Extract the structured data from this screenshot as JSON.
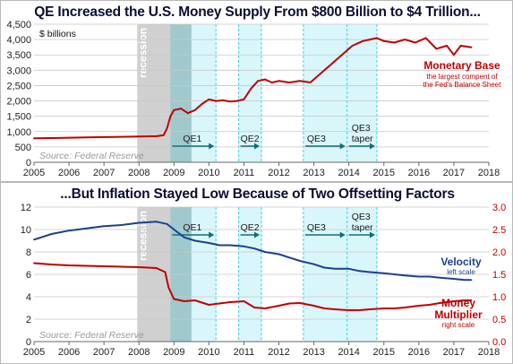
{
  "charts": [
    {
      "title": "QE Increased the U.S. Money Supply From $800 Billion to $4 Trillion...",
      "unit_label": "$ billions",
      "source": "Source: Federal Reserve"
    },
    {
      "title": "...But Inflation Stayed Low Because of Two Offsetting Factors",
      "source": "Source: Federal Reserve"
    }
  ],
  "chart_data": [
    {
      "type": "line",
      "title": "QE Increased the U.S. Money Supply From $800 Billion to $4 Trillion...",
      "ylabel": "$ billions",
      "x_ticks": [
        "2005",
        "2006",
        "2007",
        "2008",
        "2009",
        "2010",
        "2011",
        "2012",
        "2013",
        "2014",
        "2015",
        "2016",
        "2017",
        "2018"
      ],
      "xlim": [
        2005,
        2018
      ],
      "ylim": [
        0,
        4500
      ],
      "y_ticks": [
        "0",
        "500",
        "1,000",
        "1,500",
        "2,000",
        "2,500",
        "3,000",
        "3,500",
        "4,000",
        "4,500"
      ],
      "grid": true,
      "series": [
        {
          "name": "Monetary Base",
          "note": "the largest compent of the Fed's Balance Sheet",
          "color": "#c00000",
          "x": [
            2005.0,
            2005.5,
            2006.0,
            2006.5,
            2007.0,
            2007.5,
            2008.0,
            2008.5,
            2008.7,
            2008.8,
            2008.9,
            2009.0,
            2009.2,
            2009.4,
            2009.6,
            2009.8,
            2010.0,
            2010.2,
            2010.4,
            2010.6,
            2010.8,
            2011.0,
            2011.2,
            2011.4,
            2011.6,
            2011.8,
            2012.0,
            2012.3,
            2012.6,
            2012.9,
            2013.2,
            2013.5,
            2013.8,
            2014.1,
            2014.4,
            2014.6,
            2014.8,
            2015.0,
            2015.3,
            2015.6,
            2015.9,
            2016.2,
            2016.5,
            2016.8,
            2017.0,
            2017.2,
            2017.5
          ],
          "y": [
            780,
            790,
            800,
            810,
            820,
            830,
            840,
            850,
            880,
            1100,
            1500,
            1700,
            1750,
            1600,
            1700,
            1900,
            2050,
            2000,
            2020,
            1980,
            2000,
            2050,
            2400,
            2650,
            2700,
            2600,
            2650,
            2600,
            2650,
            2600,
            2900,
            3200,
            3500,
            3800,
            3950,
            4000,
            4050,
            3950,
            3900,
            4000,
            3900,
            4050,
            3700,
            3800,
            3500,
            3800,
            3750
          ]
        }
      ],
      "shaded_periods": [
        {
          "label": "recession",
          "start": 2007.95,
          "end": 2009.5
        },
        {
          "label": "QE1",
          "start": 2008.9,
          "end": 2010.2
        },
        {
          "label": "QE2",
          "start": 2010.85,
          "end": 2011.5
        },
        {
          "label": "QE3",
          "start": 2012.7,
          "end": 2014.8
        },
        {
          "label": "QE3 taper",
          "start": 2013.95,
          "end": 2014.8
        }
      ]
    },
    {
      "type": "line",
      "title": "...But Inflation Stayed Low Because of Two Offsetting Factors",
      "x_ticks": [
        "2005",
        "2006",
        "2007",
        "2008",
        "2009",
        "2010",
        "2011",
        "2012",
        "2013",
        "2014",
        "2015",
        "2016",
        "2017",
        "2018"
      ],
      "xlim": [
        2005,
        2018
      ],
      "y_left_ticks": [
        "0",
        "2",
        "4",
        "6",
        "8",
        "10",
        "12"
      ],
      "ylim_left": [
        0,
        12
      ],
      "y_right_ticks": [
        "0.0",
        "0.5",
        "1.0",
        "1.5",
        "2.0",
        "2.5",
        "3.0"
      ],
      "ylim_right": [
        0,
        3
      ],
      "grid": true,
      "series": [
        {
          "name": "Velocity",
          "axis": "left",
          "axis_note": "left scale",
          "color": "#1f3f8f",
          "x": [
            2005.0,
            2005.5,
            2006.0,
            2006.5,
            2007.0,
            2007.5,
            2008.0,
            2008.5,
            2008.8,
            2009.0,
            2009.3,
            2009.6,
            2010.0,
            2010.3,
            2010.6,
            2011.0,
            2011.3,
            2011.6,
            2012.0,
            2012.3,
            2012.6,
            2013.0,
            2013.3,
            2013.6,
            2014.0,
            2014.3,
            2014.6,
            2015.0,
            2015.3,
            2015.6,
            2016.0,
            2016.3,
            2016.6,
            2017.0,
            2017.3,
            2017.5
          ],
          "y": [
            9.1,
            9.6,
            9.9,
            10.1,
            10.3,
            10.4,
            10.6,
            10.7,
            10.5,
            10.0,
            9.3,
            9.0,
            8.8,
            8.6,
            8.6,
            8.5,
            8.3,
            8.0,
            7.8,
            7.5,
            7.2,
            6.9,
            6.6,
            6.5,
            6.5,
            6.3,
            6.2,
            6.1,
            6.0,
            5.9,
            5.8,
            5.8,
            5.7,
            5.6,
            5.5,
            5.5
          ]
        },
        {
          "name": "Money Multiplier",
          "axis": "right",
          "axis_note": "right scale",
          "color": "#c00000",
          "x": [
            2005.0,
            2005.5,
            2006.0,
            2006.5,
            2007.0,
            2007.5,
            2008.0,
            2008.5,
            2008.75,
            2008.85,
            2009.0,
            2009.3,
            2009.6,
            2010.0,
            2010.3,
            2010.6,
            2011.0,
            2011.3,
            2011.6,
            2012.0,
            2012.3,
            2012.6,
            2013.0,
            2013.3,
            2013.6,
            2014.0,
            2014.3,
            2014.6,
            2015.0,
            2015.3,
            2015.6,
            2016.0,
            2016.3,
            2016.6,
            2017.0,
            2017.3,
            2017.5
          ],
          "y": [
            1.75,
            1.72,
            1.7,
            1.69,
            1.68,
            1.67,
            1.66,
            1.64,
            1.55,
            1.2,
            0.95,
            0.9,
            0.92,
            0.82,
            0.85,
            0.88,
            0.9,
            0.76,
            0.74,
            0.8,
            0.85,
            0.86,
            0.8,
            0.74,
            0.72,
            0.7,
            0.7,
            0.72,
            0.74,
            0.74,
            0.76,
            0.8,
            0.82,
            0.86,
            0.9,
            0.92,
            0.92
          ]
        }
      ],
      "shaded_periods": [
        {
          "label": "recession",
          "start": 2007.95,
          "end": 2009.5
        },
        {
          "label": "QE1",
          "start": 2008.9,
          "end": 2010.2
        },
        {
          "label": "QE2",
          "start": 2010.85,
          "end": 2011.5
        },
        {
          "label": "QE3",
          "start": 2012.7,
          "end": 2014.8
        },
        {
          "label": "QE3 taper",
          "start": 2013.95,
          "end": 2014.8
        }
      ]
    }
  ]
}
